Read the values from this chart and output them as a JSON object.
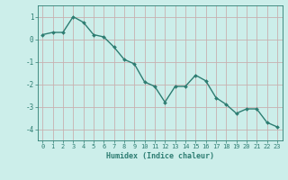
{
  "x": [
    0,
    1,
    2,
    3,
    4,
    5,
    6,
    7,
    8,
    9,
    10,
    11,
    12,
    13,
    14,
    15,
    16,
    17,
    18,
    19,
    20,
    21,
    22,
    23
  ],
  "y": [
    0.2,
    0.3,
    0.3,
    1.0,
    0.75,
    0.2,
    0.1,
    -0.35,
    -0.9,
    -1.1,
    -1.9,
    -2.1,
    -2.8,
    -2.1,
    -2.1,
    -1.6,
    -1.85,
    -2.6,
    -2.9,
    -3.3,
    -3.1,
    -3.1,
    -3.7,
    -3.9
  ],
  "xlabel": "Humidex (Indice chaleur)",
  "ylim": [
    -4.5,
    1.5
  ],
  "xlim": [
    -0.5,
    23.5
  ],
  "yticks": [
    1,
    0,
    -1,
    -2,
    -3,
    -4
  ],
  "xticks": [
    0,
    1,
    2,
    3,
    4,
    5,
    6,
    7,
    8,
    9,
    10,
    11,
    12,
    13,
    14,
    15,
    16,
    17,
    18,
    19,
    20,
    21,
    22,
    23
  ],
  "line_color": "#2d7d72",
  "marker_color": "#2d7d72",
  "bg_color": "#cceeea",
  "grid_color_h": "#c8b0b0",
  "grid_color_v": "#c8b0b0",
  "axis_color": "#2d7d72",
  "tick_color": "#2d7d72",
  "label_color": "#2d7d72"
}
